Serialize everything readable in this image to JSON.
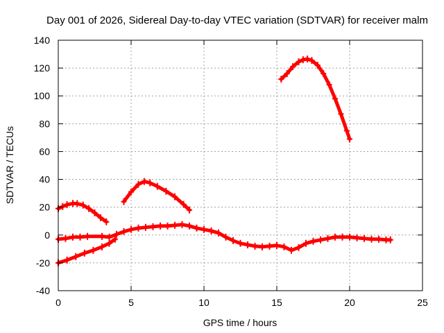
{
  "chart_data": {
    "type": "scatter",
    "title": "Day 001 of 2026, Sidereal Day-to-day VTEC variation (SDTVAR) for receiver malm",
    "xlabel": "GPS time / hours",
    "ylabel": "SDTVAR / TECUs",
    "xlim": [
      0,
      25
    ],
    "ylim": [
      -40,
      140
    ],
    "xticks": [
      0,
      5,
      10,
      15,
      20,
      25
    ],
    "yticks": [
      -40,
      -20,
      0,
      20,
      40,
      60,
      80,
      100,
      120,
      140
    ],
    "grid": true,
    "legend": "none",
    "series_color": "#ff0000",
    "series": [
      {
        "name": "arc-1",
        "x": [
          0,
          0.3,
          0.6,
          1.0,
          1.3,
          1.7,
          2.1,
          2.5,
          2.9,
          3.3
        ],
        "y": [
          19,
          20.5,
          21.8,
          22.7,
          22.6,
          21.5,
          19,
          16,
          12.5,
          9.5
        ]
      },
      {
        "name": "arc-2",
        "x": [
          0,
          0.6,
          1.2,
          1.8,
          2.4,
          3.0,
          3.5,
          3.9
        ],
        "y": [
          -20,
          -18,
          -15.5,
          -13,
          -11,
          -8.5,
          -6,
          -3
        ]
      },
      {
        "name": "arc-3",
        "x": [
          4.5,
          5.0,
          5.5,
          5.9,
          6.3,
          6.8,
          7.4,
          8.0,
          8.6,
          9.0
        ],
        "y": [
          24,
          31,
          36.5,
          38.5,
          37.5,
          35,
          31.5,
          27.5,
          22,
          18
        ]
      },
      {
        "name": "arc-4",
        "x": [
          15.3,
          15.7,
          16.1,
          16.5,
          16.8,
          17.1,
          17.4,
          17.8,
          18.2,
          18.6,
          19.0,
          19.4,
          19.8,
          20.0
        ],
        "y": [
          112,
          116,
          121,
          124.5,
          126,
          126.5,
          125.5,
          122,
          116,
          108,
          98,
          87,
          75,
          69
        ]
      },
      {
        "name": "arc-5",
        "x": [
          0,
          0.5,
          1.0,
          1.5,
          2.0,
          3.0,
          3.5,
          4.0,
          4.5,
          5.0,
          5.5,
          6.0,
          6.5,
          7.0,
          7.5,
          8.0,
          8.5,
          9.0,
          9.5,
          10.0,
          10.5,
          11.0,
          11.5,
          12.0,
          12.5,
          13.0,
          13.5,
          14.0,
          14.5,
          15.0,
          15.5,
          16.0,
          16.5,
          17.0,
          17.5,
          18.0,
          18.5,
          19.0,
          19.5,
          20.0,
          20.5,
          21.0,
          21.5,
          22.0,
          22.5,
          22.8
        ],
        "y": [
          -3,
          -2.5,
          -1.5,
          -1.5,
          -1,
          -1,
          -1.5,
          0.5,
          2.5,
          4,
          5,
          5.5,
          6,
          6.5,
          6.5,
          7,
          7.5,
          6.5,
          5,
          4,
          3,
          1.5,
          -1.5,
          -4,
          -6,
          -7,
          -8,
          -8.5,
          -8,
          -7.5,
          -8.5,
          -11,
          -9,
          -6,
          -4.5,
          -3.5,
          -2.5,
          -1.5,
          -1.5,
          -1.5,
          -2,
          -2.5,
          -3,
          -3,
          -3.5,
          -3.5
        ]
      }
    ]
  }
}
